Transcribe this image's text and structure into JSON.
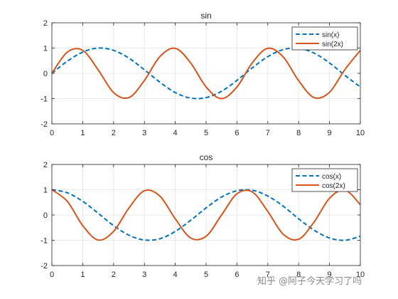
{
  "chart_data": [
    {
      "type": "line",
      "title": "sin",
      "xlabel": "",
      "ylabel": "",
      "xlim": [
        0,
        10
      ],
      "ylim": [
        -2,
        2
      ],
      "xticks": [
        "0",
        "1",
        "2",
        "3",
        "4",
        "5",
        "6",
        "7",
        "8",
        "9",
        "10"
      ],
      "yticks": [
        "-2",
        "-1",
        "0",
        "1",
        "2"
      ],
      "grid": true,
      "legend_position": "top-right",
      "x": [
        0,
        0.5,
        1,
        1.5,
        2,
        2.5,
        3,
        3.5,
        4,
        4.5,
        5,
        5.5,
        6,
        6.5,
        7,
        7.5,
        8,
        8.5,
        9,
        9.5,
        10
      ],
      "series": [
        {
          "name": "sin(x)",
          "style": "dashed",
          "color": "#0072bd",
          "values": [
            0,
            0.48,
            0.84,
            1,
            0.91,
            0.6,
            0.14,
            -0.35,
            -0.76,
            -0.98,
            -0.96,
            -0.71,
            -0.28,
            0.22,
            0.66,
            0.94,
            0.99,
            0.8,
            0.41,
            -0.08,
            -0.54
          ]
        },
        {
          "name": "sin(2x)",
          "style": "solid",
          "color": "#d95319",
          "values": [
            0,
            0.84,
            0.91,
            0.14,
            -0.76,
            -0.96,
            -0.28,
            0.66,
            0.99,
            0.41,
            -0.54,
            -1,
            -0.54,
            0.42,
            0.99,
            0.65,
            -0.29,
            -0.96,
            -0.75,
            0.15,
            0.91
          ]
        }
      ]
    },
    {
      "type": "line",
      "title": "cos",
      "xlabel": "",
      "ylabel": "",
      "xlim": [
        0,
        10
      ],
      "ylim": [
        -2,
        2
      ],
      "xticks": [
        "0",
        "1",
        "2",
        "3",
        "4",
        "5",
        "6",
        "7",
        "8",
        "9",
        "10"
      ],
      "yticks": [
        "-2",
        "-1",
        "0",
        "1",
        "2"
      ],
      "grid": true,
      "legend_position": "top-right",
      "x": [
        0,
        0.5,
        1,
        1.5,
        2,
        2.5,
        3,
        3.5,
        4,
        4.5,
        5,
        5.5,
        6,
        6.5,
        7,
        7.5,
        8,
        8.5,
        9,
        9.5,
        10
      ],
      "series": [
        {
          "name": "cos(x)",
          "style": "dashed",
          "color": "#0072bd",
          "values": [
            1,
            0.88,
            0.54,
            0.07,
            -0.42,
            -0.8,
            -0.99,
            -0.94,
            -0.65,
            -0.21,
            0.28,
            0.71,
            0.96,
            0.98,
            0.75,
            0.35,
            -0.15,
            -0.6,
            -0.91,
            -1,
            -0.84
          ]
        },
        {
          "name": "cos(2x)",
          "style": "solid",
          "color": "#d95319",
          "values": [
            1,
            0.54,
            -0.42,
            -0.99,
            -0.65,
            0.28,
            0.96,
            0.75,
            -0.15,
            -0.91,
            -0.84,
            0,
            0.84,
            0.91,
            0.14,
            -0.76,
            -0.96,
            -0.28,
            0.66,
            0.99,
            0.41
          ]
        }
      ]
    }
  ],
  "watermark": "知乎 @阿子今天学习了吗"
}
